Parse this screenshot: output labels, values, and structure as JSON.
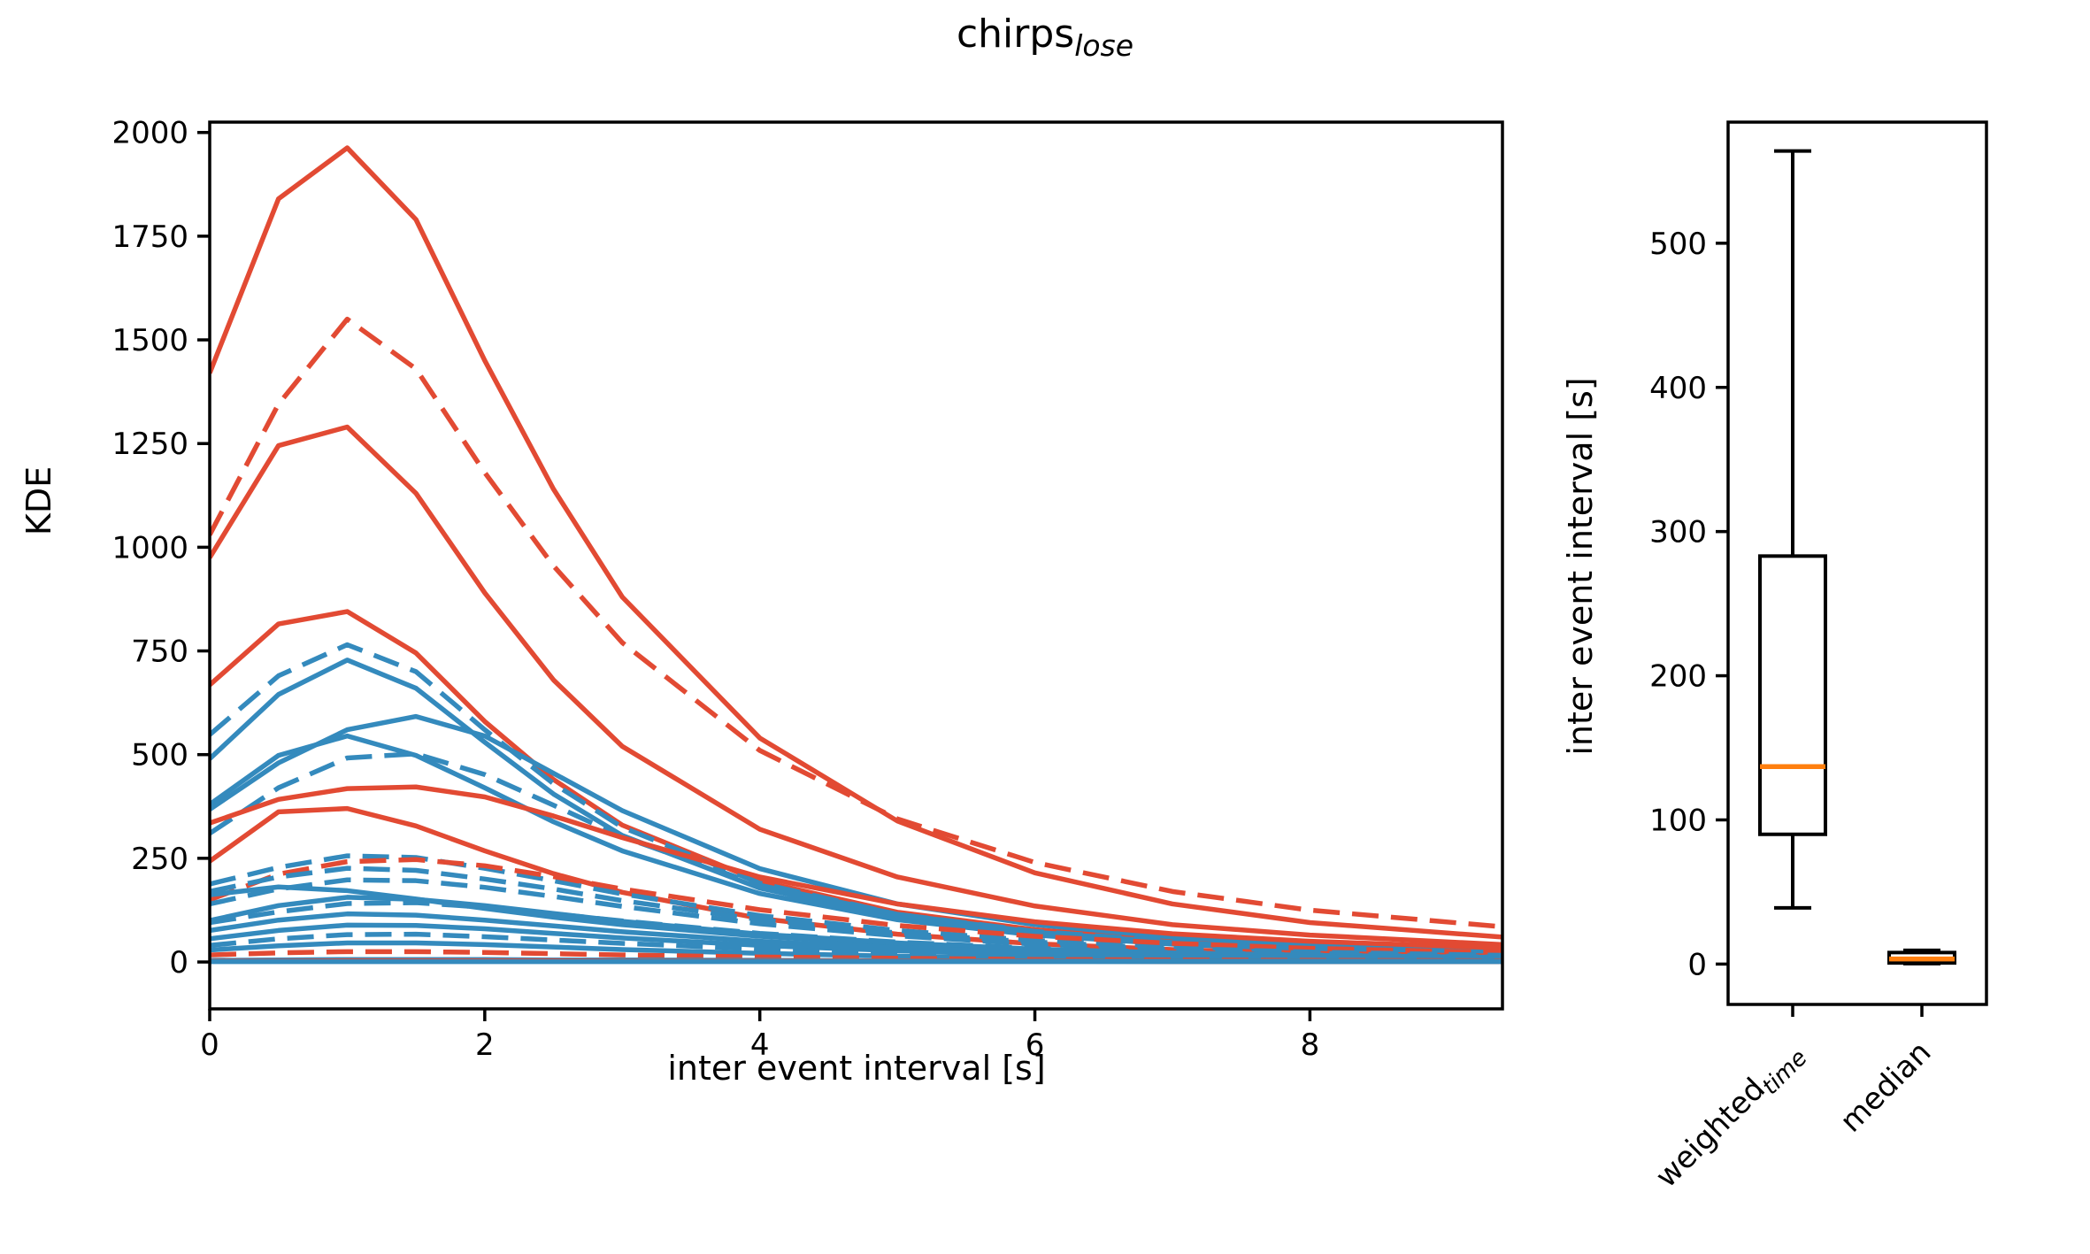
{
  "figure": {
    "title_main": "chirps",
    "title_sub": "lose",
    "background": "#ffffff"
  },
  "colors": {
    "red": "#e24a33",
    "blue": "#348abd",
    "median_line": "#ff7f0e",
    "axis": "#000000",
    "text": "#000000"
  },
  "chart_data": [
    {
      "type": "line",
      "id": "kde-curves",
      "xlabel": "inter event interval [s]",
      "ylabel": "KDE",
      "xlim": [
        0,
        9.4
      ],
      "ylim": [
        -113,
        2025
      ],
      "xticks": [
        0,
        2,
        4,
        6,
        8
      ],
      "yticks": [
        0,
        250,
        500,
        750,
        1000,
        1250,
        1500,
        1750,
        2000
      ],
      "grid": false,
      "legend": "none",
      "x": [
        0,
        0.5,
        1,
        1.5,
        2,
        2.5,
        3,
        4,
        5,
        6,
        7,
        8,
        9.4
      ],
      "series": [
        {
          "name": "red-solid-01",
          "color": "red",
          "style": "solid",
          "y": [
            1420,
            1840,
            1963,
            1790,
            1450,
            1140,
            880,
            540,
            340,
            215,
            140,
            95,
            60
          ]
        },
        {
          "name": "red-dashed-02",
          "color": "red",
          "style": "dashed",
          "y": [
            1030,
            1345,
            1550,
            1430,
            1180,
            955,
            770,
            510,
            345,
            240,
            170,
            125,
            85
          ]
        },
        {
          "name": "red-solid-03",
          "color": "red",
          "style": "solid",
          "y": [
            975,
            1245,
            1290,
            1130,
            890,
            680,
            520,
            320,
            205,
            135,
            90,
            65,
            42
          ]
        },
        {
          "name": "red-solid-04",
          "color": "red",
          "style": "solid",
          "y": [
            668,
            815,
            845,
            745,
            580,
            440,
            330,
            195,
            120,
            78,
            52,
            36,
            24
          ]
        },
        {
          "name": "blue-dashed-05",
          "color": "blue",
          "style": "dashed",
          "y": [
            548,
            690,
            765,
            700,
            560,
            430,
            325,
            190,
            115,
            72,
            47,
            32,
            20
          ]
        },
        {
          "name": "blue-solid-06",
          "color": "blue",
          "style": "solid",
          "y": [
            490,
            645,
            728,
            660,
            530,
            405,
            305,
            178,
            108,
            68,
            44,
            30,
            19
          ]
        },
        {
          "name": "blue-solid-07",
          "color": "blue",
          "style": "solid",
          "y": [
            368,
            480,
            560,
            592,
            545,
            455,
            365,
            225,
            140,
            90,
            60,
            42,
            28
          ]
        },
        {
          "name": "blue-solid-08",
          "color": "blue",
          "style": "solid",
          "y": [
            380,
            498,
            545,
            498,
            420,
            338,
            268,
            165,
            102,
            65,
            43,
            30,
            19
          ]
        },
        {
          "name": "blue-dashed-09",
          "color": "blue",
          "style": "dashed",
          "y": [
            310,
            420,
            492,
            502,
            452,
            378,
            302,
            185,
            115,
            74,
            50,
            35,
            23
          ]
        },
        {
          "name": "red-solid-10",
          "color": "red",
          "style": "solid",
          "y": [
            335,
            392,
            418,
            422,
            398,
            352,
            300,
            205,
            140,
            97,
            68,
            50,
            34
          ]
        },
        {
          "name": "red-solid-11",
          "color": "red",
          "style": "solid",
          "y": [
            243,
            362,
            370,
            328,
            268,
            213,
            168,
            105,
            67,
            44,
            30,
            21,
            14
          ]
        },
        {
          "name": "blue-dashed-12",
          "color": "blue",
          "style": "dashed",
          "y": [
            188,
            228,
            256,
            252,
            226,
            196,
            164,
            112,
            76,
            52,
            37,
            27,
            18
          ]
        },
        {
          "name": "red-dashed-13",
          "color": "red",
          "style": "dashed",
          "y": [
            150,
            212,
            242,
            247,
            232,
            206,
            176,
            126,
            88,
            62,
            45,
            33,
            23
          ]
        },
        {
          "name": "blue-dashed-14",
          "color": "blue",
          "style": "dashed",
          "y": [
            170,
            205,
            226,
            221,
            200,
            176,
            148,
            102,
            70,
            48,
            33,
            24,
            16
          ]
        },
        {
          "name": "blue-dashed-15",
          "color": "blue",
          "style": "dashed",
          "y": [
            140,
            176,
            198,
            196,
            180,
            158,
            134,
            92,
            63,
            43,
            30,
            22,
            15
          ]
        },
        {
          "name": "blue-solid-16",
          "color": "blue",
          "style": "solid",
          "y": [
            162,
            181,
            172,
            152,
            129,
            108,
            90,
            62,
            43,
            30,
            21,
            15,
            10
          ]
        },
        {
          "name": "blue-solid-17",
          "color": "blue",
          "style": "solid",
          "y": [
            100,
            136,
            156,
            151,
            136,
            117,
            98,
            67,
            46,
            31,
            22,
            16,
            11
          ]
        },
        {
          "name": "blue-dashed-18",
          "color": "blue",
          "style": "dashed",
          "y": [
            95,
            121,
            141,
            143,
            132,
            116,
            99,
            69,
            48,
            33,
            23,
            17,
            12
          ]
        },
        {
          "name": "blue-solid-19",
          "color": "blue",
          "style": "solid",
          "y": [
            76,
            101,
            116,
            113,
            101,
            87,
            73,
            50,
            34,
            23,
            16,
            12,
            8
          ]
        },
        {
          "name": "blue-solid-20",
          "color": "blue",
          "style": "solid",
          "y": [
            56,
            76,
            89,
            88,
            80,
            69,
            58,
            40,
            27,
            19,
            13,
            10,
            7
          ]
        },
        {
          "name": "blue-dashed-21",
          "color": "blue",
          "style": "dashed",
          "y": [
            40,
            56,
            66,
            67,
            61,
            53,
            45,
            31,
            21,
            14,
            10,
            7,
            5
          ]
        },
        {
          "name": "blue-solid-22",
          "color": "blue",
          "style": "solid",
          "y": [
            29,
            39,
            46,
            46,
            42,
            36,
            30,
            21,
            14,
            10,
            7,
            5,
            4
          ]
        },
        {
          "name": "red-dashed-23",
          "color": "red",
          "style": "dashed",
          "y": [
            17,
            22,
            25,
            25,
            23,
            20,
            17,
            12,
            9,
            6,
            5,
            4,
            3
          ]
        },
        {
          "name": "blue-solid-24",
          "color": "blue",
          "style": "solid",
          "y": [
            4,
            5,
            6,
            6,
            6,
            5,
            5,
            4,
            3,
            3,
            2,
            2,
            2
          ]
        },
        {
          "name": "red-solid-25",
          "color": "red",
          "style": "solid",
          "y": [
            2,
            2,
            3,
            3,
            3,
            3,
            2,
            2,
            2,
            2,
            1,
            1,
            1
          ]
        },
        {
          "name": "blue-solid-26",
          "color": "blue",
          "style": "solid",
          "y": [
            1,
            1,
            1,
            1,
            1,
            1,
            1,
            1,
            1,
            1,
            1,
            1,
            1
          ]
        }
      ]
    },
    {
      "type": "boxplot",
      "id": "iei-boxplot",
      "ylabel": "inter event interval [s]",
      "ylim": [
        -28,
        584
      ],
      "yticks": [
        0,
        100,
        200,
        300,
        400,
        500
      ],
      "grid": false,
      "categories": [
        {
          "label_main": "weighted",
          "label_sub": "time"
        },
        {
          "label_main": "median",
          "label_sub": ""
        }
      ],
      "boxes": [
        {
          "whisker_low": 39,
          "q1": 90,
          "median": 137,
          "q3": 283,
          "whisker_high": 564
        },
        {
          "whisker_low": 0.3,
          "q1": 0.8,
          "median": 3.5,
          "q3": 8,
          "whisker_high": 9.5
        }
      ]
    }
  ]
}
